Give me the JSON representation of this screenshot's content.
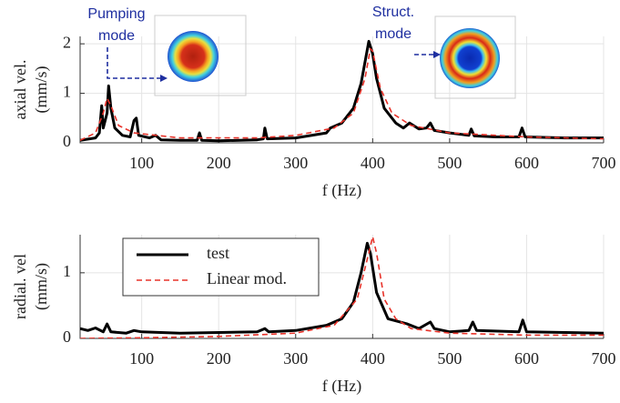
{
  "chart_data": [
    {
      "type": "line",
      "xlabel": "f (Hz)",
      "ylabel": [
        "axial vel.",
        "(mm/s)"
      ],
      "annotations": [
        "Pumping",
        "mode",
        "Struct.",
        "mode"
      ],
      "xlim": [
        20,
        700
      ],
      "ylim": [
        0,
        2.15
      ],
      "xticks": [
        100,
        200,
        300,
        400,
        500,
        600,
        700
      ],
      "yticks": [
        0,
        1,
        2
      ],
      "grid": true,
      "series": [
        {
          "color": "#000000",
          "linestyle": "solid",
          "x": [
            20,
            40,
            45,
            48,
            50,
            55,
            57,
            60,
            65,
            75,
            85,
            90,
            93,
            96,
            110,
            118,
            125,
            150,
            172,
            175,
            178,
            200,
            250,
            258,
            260,
            263,
            300,
            340,
            345,
            360,
            375,
            385,
            392,
            395,
            400,
            405,
            415,
            430,
            440,
            448,
            460,
            470,
            475,
            480,
            500,
            525,
            528,
            532,
            560,
            590,
            594,
            598,
            650,
            700
          ],
          "values": [
            0.05,
            0.1,
            0.2,
            0.75,
            0.3,
            0.6,
            1.15,
            0.7,
            0.3,
            0.15,
            0.12,
            0.45,
            0.5,
            0.15,
            0.1,
            0.15,
            0.06,
            0.05,
            0.05,
            0.2,
            0.05,
            0.04,
            0.06,
            0.08,
            0.3,
            0.08,
            0.1,
            0.2,
            0.3,
            0.4,
            0.7,
            1.2,
            1.8,
            2.05,
            1.8,
            1.3,
            0.7,
            0.4,
            0.3,
            0.4,
            0.28,
            0.3,
            0.4,
            0.25,
            0.2,
            0.15,
            0.28,
            0.14,
            0.12,
            0.12,
            0.3,
            0.12,
            0.1,
            0.1
          ]
        },
        {
          "color": "#e8332a",
          "linestyle": "dashed",
          "x": [
            20,
            40,
            50,
            55,
            60,
            70,
            90,
            150,
            250,
            300,
            350,
            375,
            390,
            397,
            400,
            410,
            425,
            450,
            500,
            600,
            700
          ],
          "values": [
            0.05,
            0.2,
            0.6,
            0.9,
            0.75,
            0.35,
            0.2,
            0.1,
            0.1,
            0.15,
            0.3,
            0.6,
            1.3,
            1.9,
            1.85,
            1.1,
            0.6,
            0.35,
            0.2,
            0.12,
            0.08
          ]
        }
      ]
    },
    {
      "type": "line",
      "xlabel": "f (Hz)",
      "ylabel": [
        "radial. vel",
        "(mm/s)"
      ],
      "xlim": [
        20,
        700
      ],
      "ylim": [
        0,
        1.58
      ],
      "xticks": [
        100,
        200,
        300,
        400,
        500,
        600,
        700
      ],
      "yticks": [
        0,
        1
      ],
      "grid": true,
      "legend": "upper left",
      "series": [
        {
          "name": "test",
          "color": "#000000",
          "linestyle": "solid",
          "x": [
            20,
            30,
            40,
            50,
            55,
            60,
            80,
            90,
            100,
            150,
            250,
            260,
            265,
            300,
            340,
            360,
            375,
            385,
            393,
            397,
            405,
            420,
            445,
            460,
            475,
            480,
            500,
            525,
            530,
            535,
            590,
            595,
            600,
            700
          ],
          "values": [
            0.15,
            0.12,
            0.16,
            0.1,
            0.22,
            0.1,
            0.08,
            0.12,
            0.1,
            0.08,
            0.1,
            0.15,
            0.1,
            0.12,
            0.2,
            0.3,
            0.55,
            1.0,
            1.45,
            1.3,
            0.7,
            0.3,
            0.22,
            0.15,
            0.25,
            0.15,
            0.1,
            0.12,
            0.25,
            0.12,
            0.1,
            0.28,
            0.1,
            0.08
          ]
        },
        {
          "name": "Linear mod.",
          "color": "#e8332a",
          "linestyle": "dashed",
          "x": [
            20,
            100,
            200,
            300,
            350,
            380,
            395,
            400,
            405,
            415,
            430,
            450,
            500,
            600,
            700
          ],
          "values": [
            0.0,
            0.01,
            0.03,
            0.08,
            0.2,
            0.6,
            1.3,
            1.55,
            1.3,
            0.6,
            0.3,
            0.15,
            0.08,
            0.05,
            0.05
          ]
        }
      ]
    }
  ]
}
